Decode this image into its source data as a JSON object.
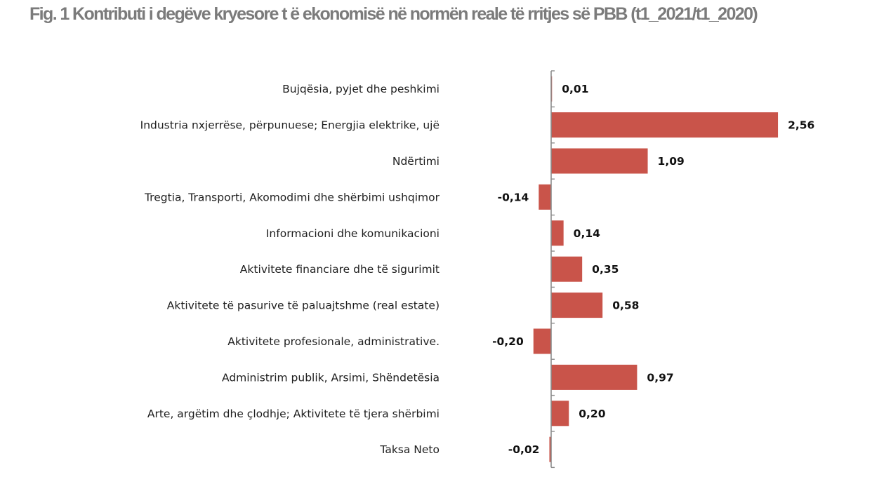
{
  "figure": {
    "title": "Fig. 1 Kontributi i degëve kryesore t ë ekonomisë në normën reale të rritjes së PBB (t1_2021/t1_2020)"
  },
  "colors": {
    "bar": "#C9544A",
    "axis": "#8c8c8c",
    "title": "#7b7b7b"
  },
  "chart_data": {
    "type": "bar",
    "orientation": "horizontal",
    "title": "Fig. 1 Kontributi i degëve kryesore t ë ekonomisë në normën reale të rritjes së PBB (t1_2021/t1_2020)",
    "xlabel": "",
    "ylabel": "",
    "grid": false,
    "legend": "none",
    "xlim": [
      -0.2,
      2.56
    ],
    "categories": [
      "Bujqësia, pyjet dhe peshkimi",
      "Industria nxjerrëse, përpunuese; Energjia elektrike, ujë",
      "Ndërtimi",
      "Tregtia, Transporti, Akomodimi dhe shërbimi ushqimor",
      "Informacioni dhe komunikacioni",
      "Aktivitete financiare dhe të sigurimit",
      "Aktivitete të pasurive të paluajtshme (real estate)",
      "Aktivitete profesionale, administrative.",
      "Administrim publik, Arsimi, Shëndetësia",
      "Arte, argëtim dhe çlodhje; Aktivitete të tjera shërbimi",
      "Taksa Neto"
    ],
    "values": [
      0.01,
      2.56,
      1.09,
      -0.14,
      0.14,
      0.35,
      0.58,
      -0.2,
      0.97,
      0.2,
      -0.02
    ],
    "data_labels": [
      "0,01",
      "2,56",
      "1,09",
      "-0,14",
      "0,14",
      "0,35",
      "0,58",
      "-0,20",
      "0,97",
      "0,20",
      "-0,02"
    ]
  }
}
